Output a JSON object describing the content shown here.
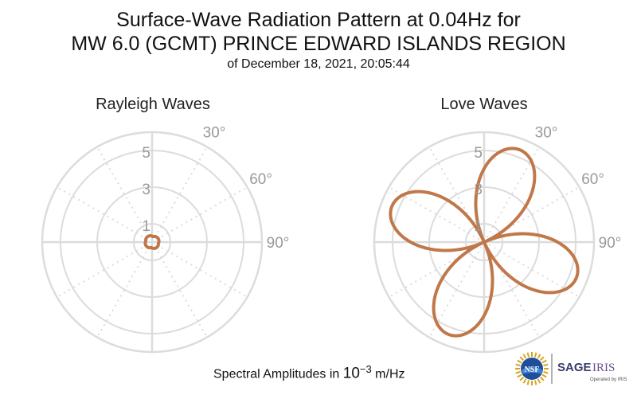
{
  "title": {
    "line1": "Surface-Wave Radiation Pattern at 0.04Hz for",
    "line2": "MW 6.0 (GCMT) PRINCE EDWARD ISLANDS REGION",
    "subtitle": "of December 18, 2021, 20:05:44"
  },
  "footer": {
    "prefix": "Spectral Amplitudes in ",
    "base": "10",
    "exp": "−3",
    "unit": " m/Hz"
  },
  "logos": {
    "nsf": "NSF",
    "sage": "SAGE",
    "iris": "IRIS",
    "tagline": "Operated by IRIS"
  },
  "colors": {
    "pattern": "#c0784a",
    "grid": "#dcdcdc",
    "ticklabel": "#9a9a9a"
  },
  "chart_data": [
    {
      "type": "polar",
      "title": "Rayleigh Waves",
      "radial_ticks": [
        "1",
        "3",
        "5"
      ],
      "radial_tick_values": [
        1,
        3,
        5
      ],
      "rmax": 6,
      "angle_tick_labels": [
        "30°",
        "60°",
        "90°"
      ],
      "angle_tick_values": [
        30,
        60,
        90
      ],
      "angular_grid_step": 30,
      "pattern": {
        "shape": "two-lobe",
        "amplitude": 0.28,
        "lobe_azimuth_deg": 100,
        "offset": 0.18
      }
    },
    {
      "type": "polar",
      "title": "Love Waves",
      "radial_ticks": [
        "1",
        "3",
        "5"
      ],
      "radial_tick_values": [
        1,
        3,
        5
      ],
      "rmax": 6,
      "angle_tick_labels": [
        "30°",
        "60°",
        "90°"
      ],
      "angle_tick_values": [
        30,
        60,
        90
      ],
      "angular_grid_step": 30,
      "pattern": {
        "shape": "four-lobe",
        "amplitude": 5.4,
        "lobe_azimuths_deg": [
          21,
          111,
          201,
          291
        ]
      }
    }
  ]
}
